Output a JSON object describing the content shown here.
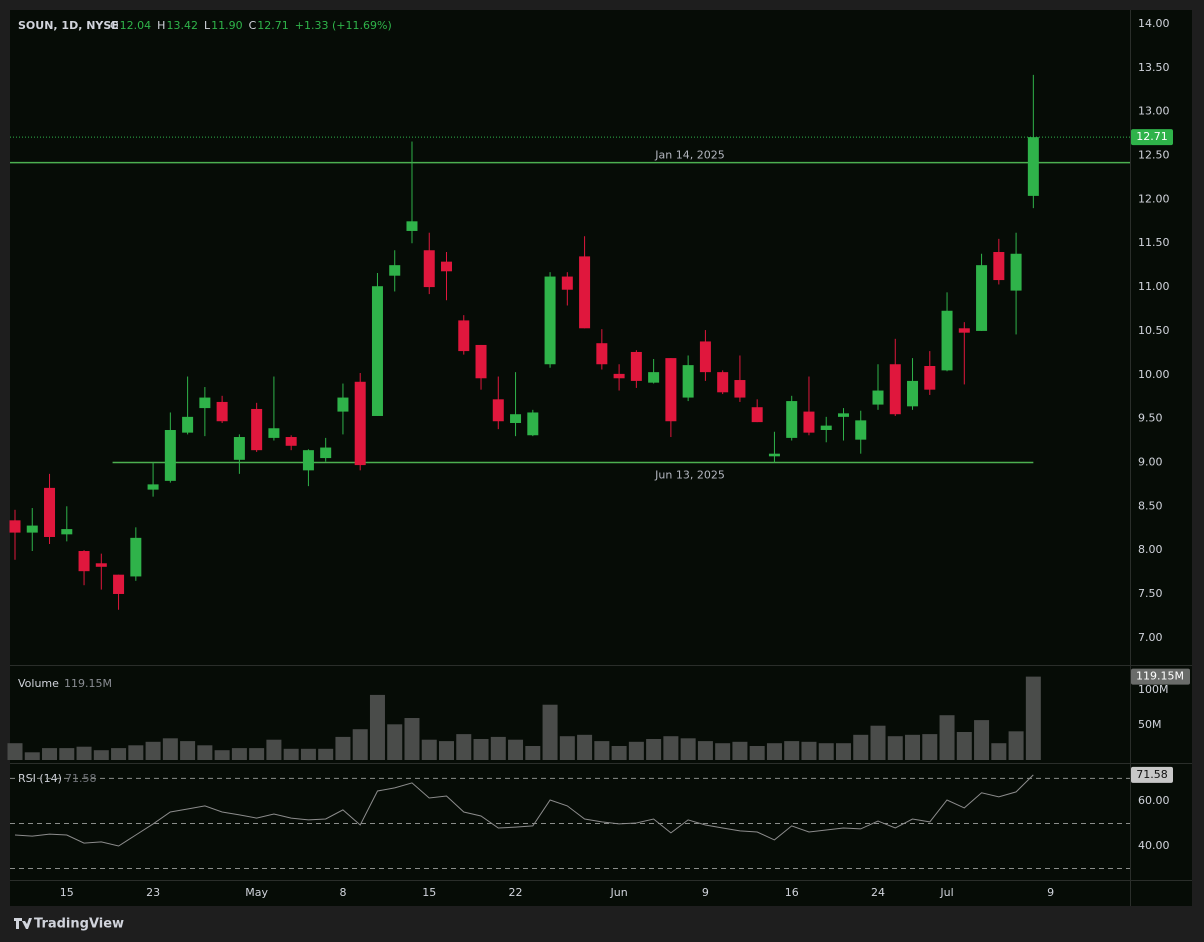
{
  "brand": "TradingView",
  "chart_data": [
    {
      "type": "candlestick",
      "title": "SOUN, 1D, NYSE",
      "legend": [
        {
          "label": "O",
          "value": "12.04"
        },
        {
          "label": "H",
          "value": "13.42"
        },
        {
          "label": "L",
          "value": "11.90"
        },
        {
          "label": "C",
          "value": "12.71"
        }
      ],
      "change": "+1.33 (+11.69%)",
      "up_color": "#2fb34a",
      "down_color": "#e0173d",
      "open": [
        8.34,
        8.2,
        8.71,
        8.18,
        7.99,
        7.85,
        7.72,
        7.7,
        8.69,
        8.79,
        9.34,
        9.62,
        9.69,
        9.03,
        9.61,
        9.28,
        9.29,
        8.91,
        9.05,
        9.58,
        9.92,
        9.53,
        11.13,
        11.64,
        11.42,
        11.29,
        10.62,
        10.34,
        9.72,
        9.45,
        9.31,
        10.12,
        11.12,
        11.35,
        10.36,
        10.01,
        10.26,
        9.91,
        10.19,
        9.74,
        10.38,
        10.03,
        9.94,
        9.63,
        9.07,
        9.28,
        9.58,
        9.37,
        9.52,
        9.26,
        9.66,
        10.12,
        9.64,
        10.1,
        10.05,
        10.53,
        10.5,
        11.4,
        10.96,
        12.04
      ],
      "high": [
        8.46,
        8.48,
        8.87,
        8.5,
        8.0,
        7.96,
        7.72,
        8.26,
        9.0,
        9.57,
        9.98,
        9.86,
        9.76,
        9.32,
        9.68,
        9.98,
        9.31,
        9.15,
        9.28,
        9.9,
        10.02,
        11.16,
        11.42,
        12.66,
        11.62,
        11.4,
        10.68,
        10.34,
        9.98,
        10.03,
        9.6,
        11.17,
        11.17,
        11.58,
        10.52,
        10.12,
        10.28,
        10.18,
        10.19,
        10.22,
        10.51,
        10.05,
        10.22,
        9.72,
        9.35,
        9.76,
        9.98,
        9.52,
        9.62,
        9.59,
        10.12,
        10.41,
        10.19,
        10.27,
        10.94,
        10.6,
        11.38,
        11.55,
        11.62,
        13.42
      ],
      "low": [
        7.89,
        7.99,
        8.07,
        8.1,
        7.6,
        7.55,
        7.32,
        7.65,
        8.61,
        8.77,
        9.32,
        9.3,
        9.45,
        8.87,
        9.12,
        9.25,
        9.14,
        8.73,
        9.01,
        9.32,
        8.91,
        9.53,
        10.95,
        11.5,
        10.92,
        10.85,
        10.23,
        9.83,
        9.38,
        9.3,
        9.3,
        10.08,
        10.79,
        10.53,
        10.06,
        9.82,
        9.85,
        9.9,
        9.29,
        9.7,
        9.93,
        9.78,
        9.69,
        9.46,
        9.0,
        9.25,
        9.31,
        9.23,
        9.25,
        9.1,
        9.6,
        9.53,
        9.6,
        9.77,
        10.04,
        9.89,
        10.5,
        11.03,
        10.46,
        11.9
      ],
      "close": [
        8.2,
        8.28,
        8.15,
        8.24,
        7.76,
        7.81,
        7.5,
        8.14,
        8.75,
        9.37,
        9.52,
        9.74,
        9.47,
        9.29,
        9.14,
        9.39,
        9.19,
        9.14,
        9.17,
        9.74,
        8.97,
        11.01,
        11.25,
        11.75,
        11.0,
        11.18,
        10.27,
        9.96,
        9.47,
        9.55,
        9.57,
        11.12,
        10.97,
        10.53,
        10.12,
        9.96,
        9.93,
        10.03,
        9.47,
        10.11,
        10.03,
        9.8,
        9.74,
        9.46,
        9.1,
        9.7,
        9.34,
        9.42,
        9.56,
        9.48,
        9.82,
        9.55,
        9.93,
        9.83,
        10.73,
        10.48,
        11.25,
        11.08,
        11.38,
        12.71
      ],
      "price_label": "12.71",
      "lines": [
        {
          "label": "Jan 14, 2025",
          "value": 12.42,
          "color": "#4caf50"
        },
        {
          "label": "Jun 13, 2025",
          "value": 9.0,
          "color": "#4caf50"
        }
      ],
      "xlim": [
        -0.29,
        64.6
      ],
      "xticks": [
        {
          "value": 3,
          "label": "15"
        },
        {
          "value": 8,
          "label": "23"
        },
        {
          "value": 14,
          "label": "May"
        },
        {
          "value": 19,
          "label": "8"
        },
        {
          "value": 24,
          "label": "15"
        },
        {
          "value": 29,
          "label": "22"
        },
        {
          "value": 35,
          "label": "Jun"
        },
        {
          "value": 40,
          "label": "9"
        },
        {
          "value": 45,
          "label": "16"
        },
        {
          "value": 50,
          "label": "24"
        },
        {
          "value": 54,
          "label": "Jul"
        },
        {
          "value": 60,
          "label": "9"
        }
      ],
      "ylim": [
        6.69,
        14.16
      ],
      "yticks": [
        {
          "value": 7,
          "label": "7.00"
        },
        {
          "value": 7.5,
          "label": "7.50"
        },
        {
          "value": 8,
          "label": "8.00"
        },
        {
          "value": 8.5,
          "label": "8.50"
        },
        {
          "value": 9,
          "label": "9.00"
        },
        {
          "value": 9.5,
          "label": "9.50"
        },
        {
          "value": 10,
          "label": "10.00"
        },
        {
          "value": 10.5,
          "label": "10.50"
        },
        {
          "value": 11,
          "label": "11.00"
        },
        {
          "value": 11.5,
          "label": "11.50"
        },
        {
          "value": 12,
          "label": "12.00"
        },
        {
          "value": 12.5,
          "label": "12.50"
        },
        {
          "value": 13,
          "label": "13.00"
        },
        {
          "value": 13.5,
          "label": "13.50"
        },
        {
          "value": 14,
          "label": "14.00"
        }
      ]
    },
    {
      "type": "bar",
      "title": "Volume",
      "value_label": "119.15M",
      "color": "#4a4c4a",
      "values": [
        24,
        11,
        17,
        17,
        19,
        14,
        17,
        21,
        26,
        31,
        27,
        21,
        14,
        17,
        17,
        29,
        16,
        16,
        16,
        33,
        44,
        93,
        51,
        60,
        29,
        27,
        37,
        30,
        33,
        29,
        20,
        79,
        34,
        36,
        27,
        20,
        26,
        30,
        34,
        31,
        27,
        24,
        26,
        20,
        24,
        27,
        26,
        24,
        24,
        36,
        49,
        34,
        36,
        37,
        64,
        40,
        57,
        24,
        41,
        119.15
      ],
      "ylim": [
        -2.86,
        132.9
      ],
      "yticks": [
        {
          "value": 50,
          "label": "50M"
        },
        {
          "value": 100,
          "label": "100M"
        }
      ]
    },
    {
      "type": "line",
      "title": "RSI (14)",
      "value_label": "71.58",
      "color": "#8c8c8c",
      "values": [
        44.9,
        44.4,
        45.3,
        44.9,
        41.3,
        41.8,
        40.0,
        44.9,
        49.8,
        55.1,
        56.4,
        57.8,
        55.1,
        53.8,
        52.4,
        54.2,
        52.4,
        51.6,
        52.0,
        56.0,
        49.3,
        64.4,
        65.8,
        68.0,
        61.3,
        62.2,
        55.1,
        53.3,
        48.0,
        48.4,
        48.9,
        60.4,
        57.8,
        52.0,
        50.7,
        49.8,
        50.2,
        52.0,
        45.8,
        51.6,
        49.3,
        48.0,
        46.7,
        46.2,
        42.7,
        48.9,
        46.2,
        47.1,
        48.0,
        47.6,
        51.1,
        48.0,
        52.0,
        50.7,
        60.4,
        56.9,
        63.6,
        61.8,
        64.0,
        71.58
      ],
      "levels": [
        30,
        50,
        70
      ],
      "ylim": [
        24.9,
        76.4
      ],
      "yticks": [
        {
          "value": 40,
          "label": "40.00"
        },
        {
          "value": 60,
          "label": "60.00"
        }
      ]
    }
  ]
}
